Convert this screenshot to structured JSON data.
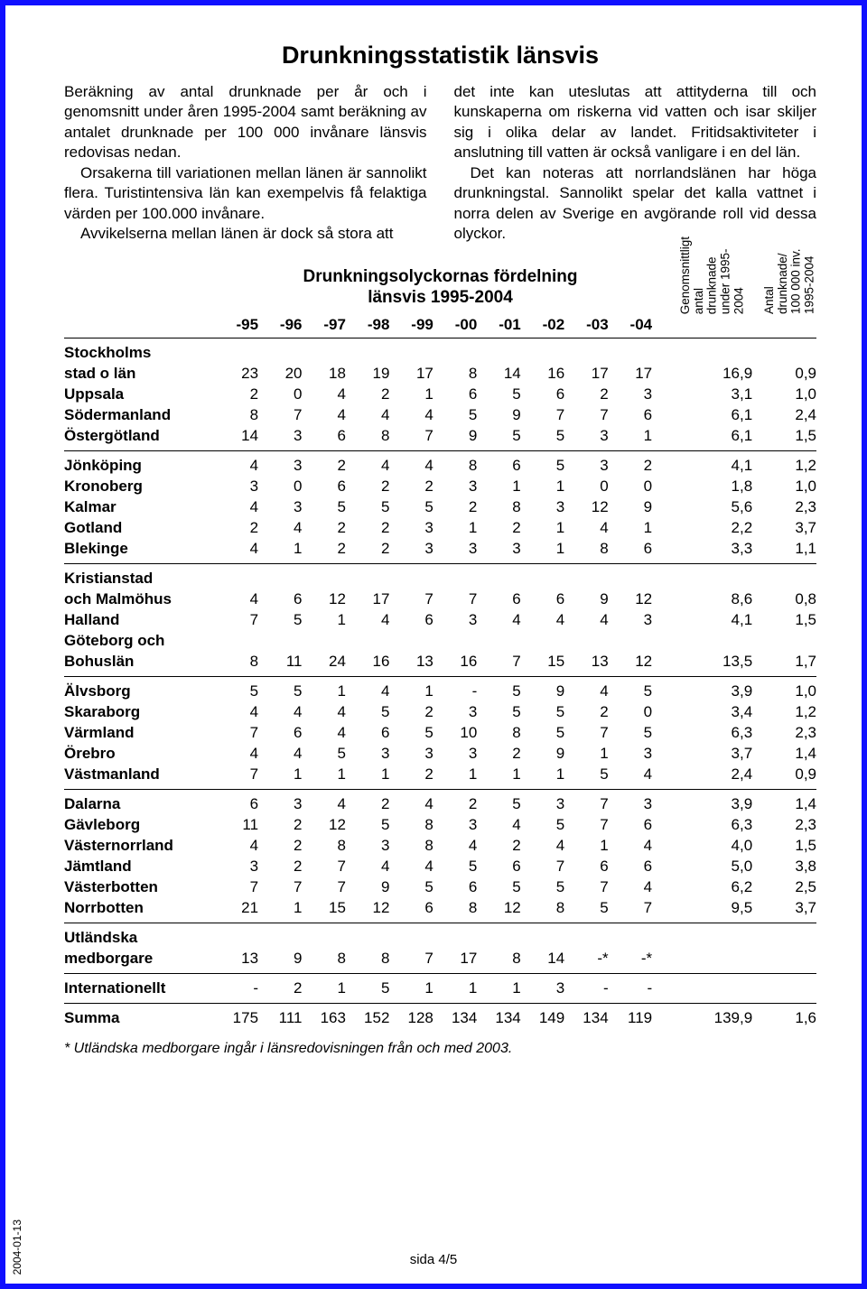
{
  "title": "Drunkningsstatistik länsvis",
  "intro": {
    "left_p1": "Beräkning av antal drunknade per år och i genomsnitt under åren 1995-2004 samt beräkning av antalet drunknade per 100 000 invånare länsvis redovisas nedan.",
    "left_p2": "Orsakerna till variationen mellan länen är sannolikt flera. Turistintensiva län kan exempelvis få felaktiga värden per 100.000 invånare.",
    "left_p3": "Avvikelserna mellan länen är dock så stora att",
    "right_p1": "det inte kan uteslutas att attityderna till och kunskaperna om riskerna vid vatten och isar skiljer sig i olika delar av landet. Fritidsaktiviteter i anslutning till vatten är också vanligare i en del län.",
    "right_p2": "Det kan noteras att norrlandslänen har höga drunkningstal. Sannolikt spelar det kalla vattnet i norra delen av Sverige en avgörande roll vid dessa olyckor."
  },
  "table_title_l1": "Drunkningsolyckornas fördelning",
  "table_title_l2": "länsvis 1995-2004",
  "vert1": "Genomsnittligt\nantal drunknade\nunder 1995-2004",
  "vert2": "Antal drunknade/\n100 000 inv.\n1995-2004",
  "years": [
    "-95",
    "-96",
    "-97",
    "-98",
    "-99",
    "-00",
    "-01",
    "-02",
    "-03",
    "-04"
  ],
  "groups": [
    {
      "pre": "Stockholms",
      "rows": [
        {
          "n": "stad o län",
          "v": [
            "23",
            "20",
            "18",
            "19",
            "17",
            "8",
            "14",
            "16",
            "17",
            "17"
          ],
          "a": "16,9",
          "p": "0,9"
        },
        {
          "n": "Uppsala",
          "v": [
            "2",
            "0",
            "4",
            "2",
            "1",
            "6",
            "5",
            "6",
            "2",
            "3"
          ],
          "a": "3,1",
          "p": "1,0"
        },
        {
          "n": "Södermanland",
          "v": [
            "8",
            "7",
            "4",
            "4",
            "4",
            "5",
            "9",
            "7",
            "7",
            "6"
          ],
          "a": "6,1",
          "p": "2,4"
        },
        {
          "n": "Östergötland",
          "v": [
            "14",
            "3",
            "6",
            "8",
            "7",
            "9",
            "5",
            "5",
            "3",
            "1"
          ],
          "a": "6,1",
          "p": "1,5"
        }
      ]
    },
    {
      "rows": [
        {
          "n": "Jönköping",
          "v": [
            "4",
            "3",
            "2",
            "4",
            "4",
            "8",
            "6",
            "5",
            "3",
            "2"
          ],
          "a": "4,1",
          "p": "1,2"
        },
        {
          "n": "Kronoberg",
          "v": [
            "3",
            "0",
            "6",
            "2",
            "2",
            "3",
            "1",
            "1",
            "0",
            "0"
          ],
          "a": "1,8",
          "p": "1,0"
        },
        {
          "n": "Kalmar",
          "v": [
            "4",
            "3",
            "5",
            "5",
            "5",
            "2",
            "8",
            "3",
            "12",
            "9"
          ],
          "a": "5,6",
          "p": "2,3"
        },
        {
          "n": "Gotland",
          "v": [
            "2",
            "4",
            "2",
            "2",
            "3",
            "1",
            "2",
            "1",
            "4",
            "1"
          ],
          "a": "2,2",
          "p": "3,7"
        },
        {
          "n": "Blekinge",
          "v": [
            "4",
            "1",
            "2",
            "2",
            "3",
            "3",
            "3",
            "1",
            "8",
            "6"
          ],
          "a": "3,3",
          "p": "1,1"
        }
      ]
    },
    {
      "pre": "Kristianstad",
      "rows": [
        {
          "n": "och Malmöhus",
          "v": [
            "4",
            "6",
            "12",
            "17",
            "7",
            "7",
            "6",
            "6",
            "9",
            "12"
          ],
          "a": "8,6",
          "p": "0,8"
        },
        {
          "n": "Halland",
          "v": [
            "7",
            "5",
            "1",
            "4",
            "6",
            "3",
            "4",
            "4",
            "4",
            "3"
          ],
          "a": "4,1",
          "p": "1,5"
        }
      ],
      "mid": "Göteborg och",
      "rows2": [
        {
          "n": "Bohuslän",
          "v": [
            "8",
            "11",
            "24",
            "16",
            "13",
            "16",
            "7",
            "15",
            "13",
            "12"
          ],
          "a": "13,5",
          "p": "1,7"
        }
      ]
    },
    {
      "rows": [
        {
          "n": "Älvsborg",
          "v": [
            "5",
            "5",
            "1",
            "4",
            "1",
            "-",
            "5",
            "9",
            "4",
            "5"
          ],
          "a": "3,9",
          "p": "1,0"
        },
        {
          "n": "Skaraborg",
          "v": [
            "4",
            "4",
            "4",
            "5",
            "2",
            "3",
            "5",
            "5",
            "2",
            "0"
          ],
          "a": "3,4",
          "p": "1,2"
        },
        {
          "n": "Värmland",
          "v": [
            "7",
            "6",
            "4",
            "6",
            "5",
            "10",
            "8",
            "5",
            "7",
            "5"
          ],
          "a": "6,3",
          "p": "2,3"
        },
        {
          "n": "Örebro",
          "v": [
            "4",
            "4",
            "5",
            "3",
            "3",
            "3",
            "2",
            "9",
            "1",
            "3"
          ],
          "a": "3,7",
          "p": "1,4"
        },
        {
          "n": "Västmanland",
          "v": [
            "7",
            "1",
            "1",
            "1",
            "2",
            "1",
            "1",
            "1",
            "5",
            "4"
          ],
          "a": "2,4",
          "p": "0,9"
        }
      ]
    },
    {
      "rows": [
        {
          "n": "Dalarna",
          "v": [
            "6",
            "3",
            "4",
            "2",
            "4",
            "2",
            "5",
            "3",
            "7",
            "3"
          ],
          "a": "3,9",
          "p": "1,4"
        },
        {
          "n": "Gävleborg",
          "v": [
            "11",
            "2",
            "12",
            "5",
            "8",
            "3",
            "4",
            "5",
            "7",
            "6"
          ],
          "a": "6,3",
          "p": "2,3"
        },
        {
          "n": "Västernorrland",
          "v": [
            "4",
            "2",
            "8",
            "3",
            "8",
            "4",
            "2",
            "4",
            "1",
            "4"
          ],
          "a": "4,0",
          "p": "1,5"
        },
        {
          "n": "Jämtland",
          "v": [
            "3",
            "2",
            "7",
            "4",
            "4",
            "5",
            "6",
            "7",
            "6",
            "6"
          ],
          "a": "5,0",
          "p": "3,8"
        },
        {
          "n": "Västerbotten",
          "v": [
            "7",
            "7",
            "7",
            "9",
            "5",
            "6",
            "5",
            "5",
            "7",
            "4"
          ],
          "a": "6,2",
          "p": "2,5"
        },
        {
          "n": "Norrbotten",
          "v": [
            "21",
            "1",
            "15",
            "12",
            "6",
            "8",
            "12",
            "8",
            "5",
            "7"
          ],
          "a": "9,5",
          "p": "3,7"
        }
      ]
    },
    {
      "pre": "Utländska",
      "rows": [
        {
          "n": "medborgare",
          "v": [
            "13",
            "9",
            "8",
            "8",
            "7",
            "17",
            "8",
            "14",
            "-*",
            "-*"
          ],
          "a": "",
          "p": ""
        }
      ]
    },
    {
      "rows": [
        {
          "n": "Internationellt",
          "v": [
            "-",
            "2",
            "1",
            "5",
            "1",
            "1",
            "1",
            "3",
            "-",
            "-"
          ],
          "a": "",
          "p": ""
        }
      ]
    },
    {
      "rows": [
        {
          "n": "Summa",
          "v": [
            "175",
            "111",
            "163",
            "152",
            "128",
            "134",
            "134",
            "149",
            "134",
            "119"
          ],
          "a": "139,9",
          "p": "1,6"
        }
      ]
    }
  ],
  "footnote": "* Utländska medborgare ingår i länsredovisningen från och med 2003.",
  "pagefoot": "sida 4/5",
  "datestamp": "2004-01-13"
}
